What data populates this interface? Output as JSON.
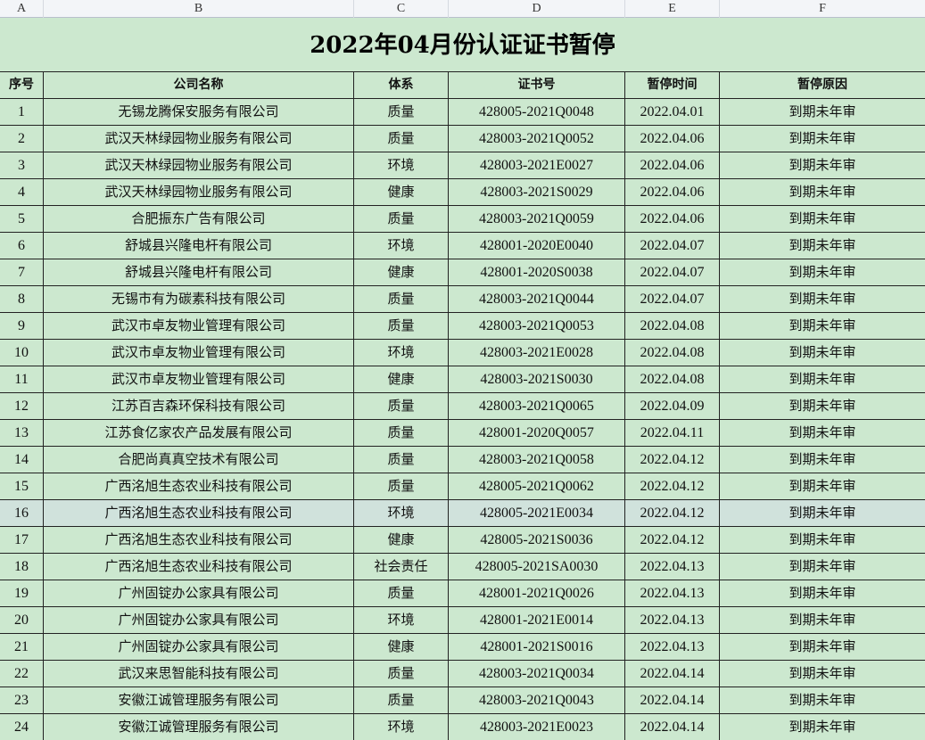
{
  "column_letters": [
    "A",
    "B",
    "C",
    "D",
    "E",
    "F"
  ],
  "title": "2022年04月份认证证书暂停",
  "headers": [
    "序号",
    "公司名称",
    "体系",
    "证书号",
    "暂停时间",
    "暂停原因"
  ],
  "selected_row": 16,
  "rows": [
    [
      "1",
      "无锡龙腾保安服务有限公司",
      "质量",
      "428005-2021Q0048",
      "2022.04.01",
      "到期未年审"
    ],
    [
      "2",
      "武汉天林绿园物业服务有限公司",
      "质量",
      "428003-2021Q0052",
      "2022.04.06",
      "到期未年审"
    ],
    [
      "3",
      "武汉天林绿园物业服务有限公司",
      "环境",
      "428003-2021E0027",
      "2022.04.06",
      "到期未年审"
    ],
    [
      "4",
      "武汉天林绿园物业服务有限公司",
      "健康",
      "428003-2021S0029",
      "2022.04.06",
      "到期未年审"
    ],
    [
      "5",
      "合肥振东广告有限公司",
      "质量",
      "428003-2021Q0059",
      "2022.04.06",
      "到期未年审"
    ],
    [
      "6",
      "舒城县兴隆电杆有限公司",
      "环境",
      "428001-2020E0040",
      "2022.04.07",
      "到期未年审"
    ],
    [
      "7",
      "舒城县兴隆电杆有限公司",
      "健康",
      "428001-2020S0038",
      "2022.04.07",
      "到期未年审"
    ],
    [
      "8",
      "无锡市有为碳素科技有限公司",
      "质量",
      "428003-2021Q0044",
      "2022.04.07",
      "到期未年审"
    ],
    [
      "9",
      "武汉市卓友物业管理有限公司",
      "质量",
      "428003-2021Q0053",
      "2022.04.08",
      "到期未年审"
    ],
    [
      "10",
      "武汉市卓友物业管理有限公司",
      "环境",
      "428003-2021E0028",
      "2022.04.08",
      "到期未年审"
    ],
    [
      "11",
      "武汉市卓友物业管理有限公司",
      "健康",
      "428003-2021S0030",
      "2022.04.08",
      "到期未年审"
    ],
    [
      "12",
      "江苏百吉森环保科技有限公司",
      "质量",
      "428003-2021Q0065",
      "2022.04.09",
      "到期未年审"
    ],
    [
      "13",
      "江苏食亿家农产品发展有限公司",
      "质量",
      "428001-2020Q0057",
      "2022.04.11",
      "到期未年审"
    ],
    [
      "14",
      "合肥尚真真空技术有限公司",
      "质量",
      "428003-2021Q0058",
      "2022.04.12",
      "到期未年审"
    ],
    [
      "15",
      "广西洺旭生态农业科技有限公司",
      "质量",
      "428005-2021Q0062",
      "2022.04.12",
      "到期未年审"
    ],
    [
      "16",
      "广西洺旭生态农业科技有限公司",
      "环境",
      "428005-2021E0034",
      "2022.04.12",
      "到期未年审"
    ],
    [
      "17",
      "广西洺旭生态农业科技有限公司",
      "健康",
      "428005-2021S0036",
      "2022.04.12",
      "到期未年审"
    ],
    [
      "18",
      "广西洺旭生态农业科技有限公司",
      "社会责任",
      "428005-2021SA0030",
      "2022.04.13",
      "到期未年审"
    ],
    [
      "19",
      "广州固锭办公家具有限公司",
      "质量",
      "428001-2021Q0026",
      "2022.04.13",
      "到期未年审"
    ],
    [
      "20",
      "广州固锭办公家具有限公司",
      "环境",
      "428001-2021E0014",
      "2022.04.13",
      "到期未年审"
    ],
    [
      "21",
      "广州固锭办公家具有限公司",
      "健康",
      "428001-2021S0016",
      "2022.04.13",
      "到期未年审"
    ],
    [
      "22",
      "武汉来思智能科技有限公司",
      "质量",
      "428003-2021Q0034",
      "2022.04.14",
      "到期未年审"
    ],
    [
      "23",
      "安徽江诚管理服务有限公司",
      "质量",
      "428003-2021Q0043",
      "2022.04.14",
      "到期未年审"
    ],
    [
      "24",
      "安徽江诚管理服务有限公司",
      "环境",
      "428003-2021E0023",
      "2022.04.14",
      "到期未年审"
    ]
  ]
}
